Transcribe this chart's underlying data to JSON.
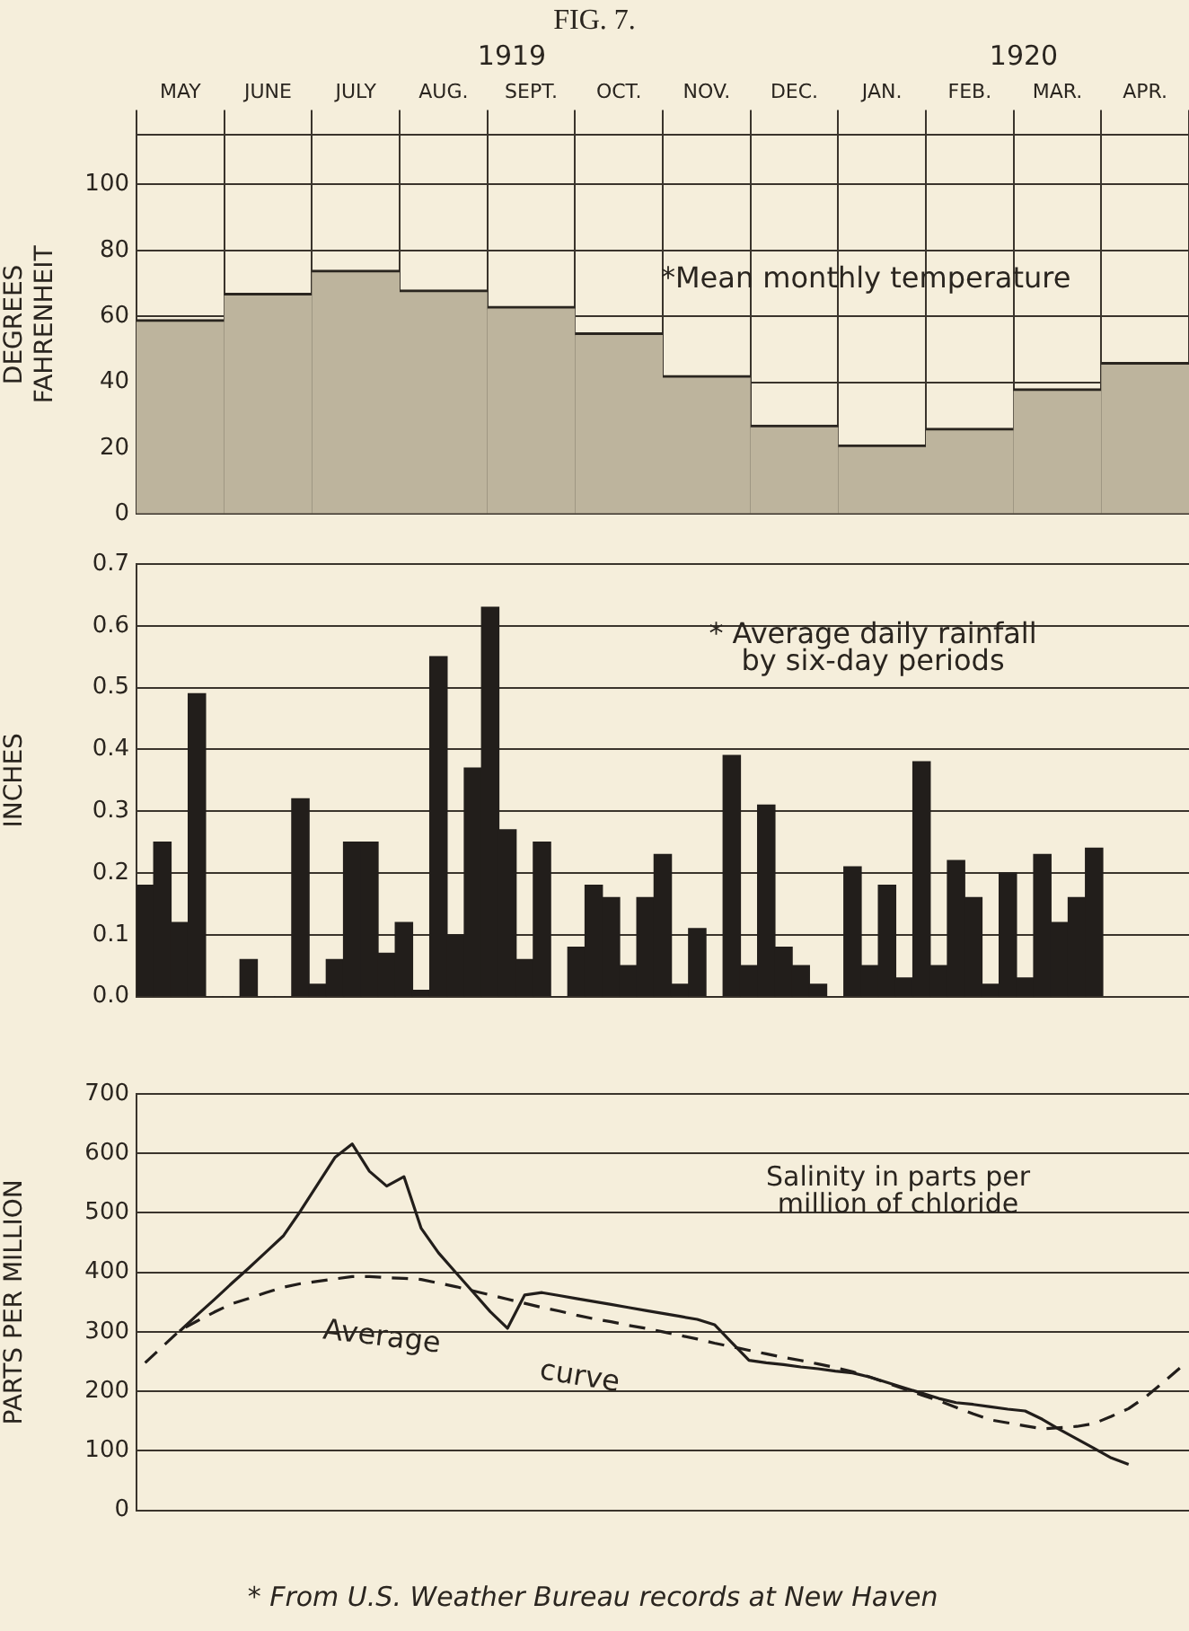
{
  "chart_data": [
    {
      "type": "bar",
      "title": "FIG. 7.",
      "ylabel": "DEGREES FAHRENHEIT",
      "categories": [
        "MAY",
        "JUNE",
        "JULY",
        "AUG.",
        "SEPT.",
        "OCT.",
        "NOV.",
        "DEC.",
        "JAN.",
        "FEB.",
        "MAR.",
        "APR."
      ],
      "values": [
        59,
        67,
        74,
        68,
        63,
        55,
        42,
        27,
        21,
        26,
        38,
        46
      ],
      "color": "#bdb49d",
      "ylim": [
        0,
        115
      ],
      "yticks": [
        0,
        20,
        40,
        60,
        80,
        100
      ],
      "grid": true,
      "annotations": [
        "1919",
        "1920",
        "*Mean monthly temperature"
      ]
    },
    {
      "type": "bar",
      "ylabel": "INCHES",
      "categories": [
        null,
        null,
        null,
        null,
        null,
        null,
        null,
        null,
        null,
        null,
        null,
        null,
        null,
        null,
        null,
        null,
        null,
        null,
        null,
        null,
        null,
        null,
        null,
        null,
        null,
        null,
        null,
        null,
        null,
        null,
        null,
        null,
        null,
        null,
        null,
        null,
        null,
        null,
        null,
        null,
        null,
        null,
        null,
        null,
        null,
        null,
        null,
        null,
        null,
        null,
        null,
        null,
        null,
        null,
        null,
        null,
        null,
        null,
        null,
        null,
        null
      ],
      "values": [
        0.18,
        0.25,
        0.12,
        0.49,
        0,
        0,
        0.06,
        0,
        0,
        0.32,
        0.02,
        0.06,
        0.25,
        0.25,
        0.07,
        0.12,
        0.01,
        0.55,
        0.1,
        0.37,
        0.63,
        0.27,
        0.06,
        0.25,
        0,
        0.08,
        0.18,
        0.16,
        0.05,
        0.16,
        0.23,
        0.02,
        0.11,
        0,
        0.39,
        0.05,
        0.31,
        0.08,
        0.05,
        0.02,
        0,
        0.21,
        0.05,
        0.18,
        0.03,
        0.38,
        0.05,
        0.22,
        0.16,
        0.02,
        0.2,
        0.03,
        0.23,
        0.12,
        0.16,
        0.24,
        null,
        null,
        null,
        null,
        null
      ],
      "color": "#221e1b",
      "ylim": [
        0,
        0.7
      ],
      "yticks": [
        {
          "value": 0,
          "label": "0.0"
        },
        0.1,
        0.2,
        0.3,
        0.4,
        0.5,
        0.6,
        0.7
      ],
      "grid": "y",
      "annotations": [
        "* Average daily rainfall\nby six-day periods"
      ]
    },
    {
      "type": "line",
      "title": "Salinity in parts per million of chloride",
      "ylabel": "PARTS PER MILLION",
      "marker": "none",
      "categories": [
        null,
        null,
        null,
        null,
        null,
        null,
        null,
        null,
        null,
        null,
        null,
        null,
        null,
        null,
        null,
        null,
        null,
        null,
        null,
        null,
        null,
        null,
        null,
        null,
        null,
        null,
        null,
        null,
        null,
        null,
        null,
        null,
        null,
        null,
        null,
        null,
        null,
        null,
        null,
        null,
        null,
        null,
        null,
        null,
        null,
        null,
        null,
        null,
        null,
        null,
        null,
        null,
        null,
        null,
        null,
        null,
        null,
        null,
        null,
        null,
        null
      ],
      "series": [
        {
          "color": "#221e1b",
          "line_style": "solid",
          "values": [
            null,
            null,
            301,
            328,
            354,
            381,
            407,
            434,
            461,
            503,
            548,
            593,
            616,
            570,
            545,
            561,
            474,
            433,
            400,
            367,
            334,
            306,
            362,
            366,
            361,
            356,
            351,
            346,
            341,
            336,
            331,
            326,
            321,
            312,
            282,
            252,
            248,
            245,
            241,
            238,
            234,
            231,
            224,
            215,
            206,
            197,
            188,
            181,
            178,
            174,
            170,
            167,
            153,
            136,
            120,
            104,
            88,
            77,
            null,
            null,
            null
          ]
        },
        {
          "name": "Average curve",
          "color": "#221e1b",
          "line_style": "dashed",
          "values": [
            248,
            275,
            302,
            318,
            333,
            347,
            356,
            366,
            375,
            381,
            385,
            389,
            393,
            393,
            391,
            390,
            388,
            382,
            376,
            369,
            362,
            355,
            348,
            341,
            335,
            328,
            322,
            317,
            311,
            306,
            300,
            294,
            288,
            281,
            275,
            269,
            263,
            257,
            252,
            246,
            240,
            233,
            224,
            214,
            204,
            194,
            184,
            173,
            162,
            152,
            147,
            142,
            137,
            139,
            141,
            146,
            158,
            171,
            191,
            215,
            240
          ]
        }
      ],
      "ylim": [
        0,
        700
      ],
      "yticks": [
        0,
        100,
        200,
        300,
        400,
        500,
        600,
        700
      ],
      "grid": "y",
      "annotations": [
        "* From U.S. Weather Bureau records at New Haven"
      ]
    }
  ]
}
